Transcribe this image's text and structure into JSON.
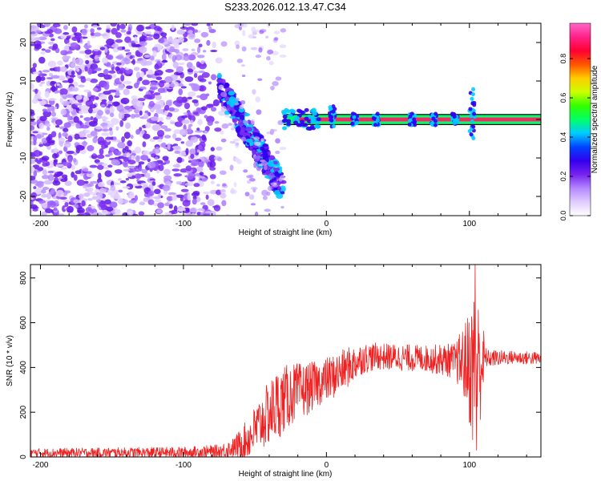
{
  "figure_title": "S233.2026.012.13.47.C34",
  "colors": {
    "snr_line": "#ee2222",
    "axis": "#000000",
    "ridge": "#ff2266"
  },
  "chart_data": [
    {
      "type": "heatmap",
      "title": "S233.2026.012.13.47.C34",
      "xlabel": "Height of straight line (km)",
      "ylabel": "Frequency (Hz)",
      "xlim": [
        -207,
        150
      ],
      "ylim": [
        -25,
        25
      ],
      "x_ticks": [
        -200,
        -100,
        0,
        100
      ],
      "y_ticks": [
        -20,
        -10,
        0,
        10,
        20
      ],
      "colorbar": {
        "label": "Normalized spectral amplitude",
        "range": [
          0,
          0.98
        ],
        "ticks": [
          0.0,
          0.2,
          0.4,
          0.6,
          0.8
        ],
        "colormap": [
          "#ffffff",
          "#e0ccff",
          "#b388ff",
          "#7722ee",
          "#3300ee",
          "#0044ff",
          "#00ccff",
          "#00ff66",
          "#33ff00",
          "#ccff00",
          "#ffcc00",
          "#ff5500",
          "#ff0033",
          "#ff2288",
          "#ff66cc"
        ]
      },
      "features": [
        {
          "name": "broadband noise",
          "x_range": [
            -207,
            -75
          ],
          "f_range": [
            -25,
            25
          ],
          "amplitude": 0.15
        },
        {
          "name": "chirp descending",
          "x_range": [
            -75,
            -30
          ],
          "f_from": 9,
          "f_to": -18,
          "amplitude": 0.3
        },
        {
          "name": "carrier ridge",
          "x_range": [
            -30,
            150
          ],
          "f": 0,
          "amplitude": 0.95
        },
        {
          "name": "disturbance",
          "x": 4,
          "f_range": [
            -2,
            4
          ]
        },
        {
          "name": "disturbance",
          "x": 102,
          "f_range": [
            -5,
            8
          ]
        }
      ]
    },
    {
      "type": "line",
      "xlabel": "Height of straight line (km)",
      "ylabel": "SNR (10 * v/v)",
      "xlim": [
        -207,
        150
      ],
      "ylim": [
        0,
        860
      ],
      "x_ticks": [
        -200,
        -100,
        0,
        100
      ],
      "y_ticks": [
        0,
        200,
        400,
        600,
        800
      ],
      "envelope": {
        "x": [
          -207,
          -100,
          -75,
          -65,
          -55,
          -45,
          -35,
          -25,
          -15,
          -5,
          5,
          15,
          25,
          35,
          50,
          70,
          90,
          98,
          104,
          108,
          112,
          130,
          150
        ],
        "mean": [
          18,
          20,
          25,
          40,
          80,
          160,
          230,
          280,
          300,
          330,
          360,
          400,
          440,
          450,
          445,
          440,
          430,
          420,
          380,
          420,
          440,
          445,
          440
        ],
        "spread": [
          20,
          25,
          30,
          45,
          90,
          130,
          160,
          140,
          120,
          100,
          100,
          90,
          70,
          60,
          60,
          60,
          80,
          200,
          400,
          250,
          40,
          30,
          30
        ]
      },
      "peaks": [
        {
          "x": 104,
          "y": 860
        },
        {
          "x": 105,
          "y": 30
        }
      ]
    }
  ]
}
